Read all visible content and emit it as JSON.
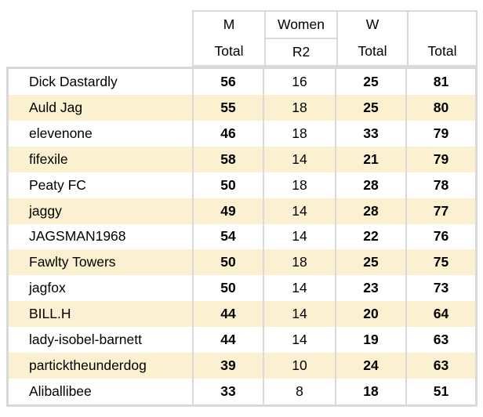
{
  "chart_data": {
    "type": "table",
    "header": {
      "groups": [
        {
          "top": "M",
          "bottom": "Total",
          "split": false
        },
        {
          "top": "Women",
          "bottom": "R2",
          "split": true
        },
        {
          "top": "W",
          "bottom": "Total",
          "split": false
        },
        {
          "top": "",
          "bottom": "Total",
          "split": false
        }
      ],
      "bold_value_columns": [
        0,
        2,
        3
      ]
    },
    "rows": [
      {
        "name": "Dick Dastardly",
        "values": [
          56,
          16,
          25,
          81
        ]
      },
      {
        "name": "Auld Jag",
        "values": [
          55,
          18,
          25,
          80
        ]
      },
      {
        "name": "elevenone",
        "values": [
          46,
          18,
          33,
          79
        ]
      },
      {
        "name": "fifexile",
        "values": [
          58,
          14,
          21,
          79
        ]
      },
      {
        "name": "Peaty FC",
        "values": [
          50,
          18,
          28,
          78
        ]
      },
      {
        "name": "jaggy",
        "values": [
          49,
          14,
          28,
          77
        ]
      },
      {
        "name": "JAGSMAN1968",
        "values": [
          54,
          14,
          22,
          76
        ]
      },
      {
        "name": "Fawlty Towers",
        "values": [
          50,
          18,
          25,
          75
        ]
      },
      {
        "name": "jagfox",
        "values": [
          50,
          14,
          23,
          73
        ]
      },
      {
        "name": "BILL.H",
        "values": [
          44,
          14,
          20,
          64
        ]
      },
      {
        "name": "lady-isobel-barnett",
        "values": [
          44,
          14,
          19,
          63
        ]
      },
      {
        "name": "particktheunderdog",
        "values": [
          39,
          10,
          24,
          63
        ]
      },
      {
        "name": "Aliballibee",
        "values": [
          33,
          8,
          18,
          51
        ]
      }
    ]
  },
  "colors": {
    "stripe": "#FBF0CF",
    "border": "#D9D9D9",
    "text": "#000000",
    "background": "#FFFFFF"
  }
}
